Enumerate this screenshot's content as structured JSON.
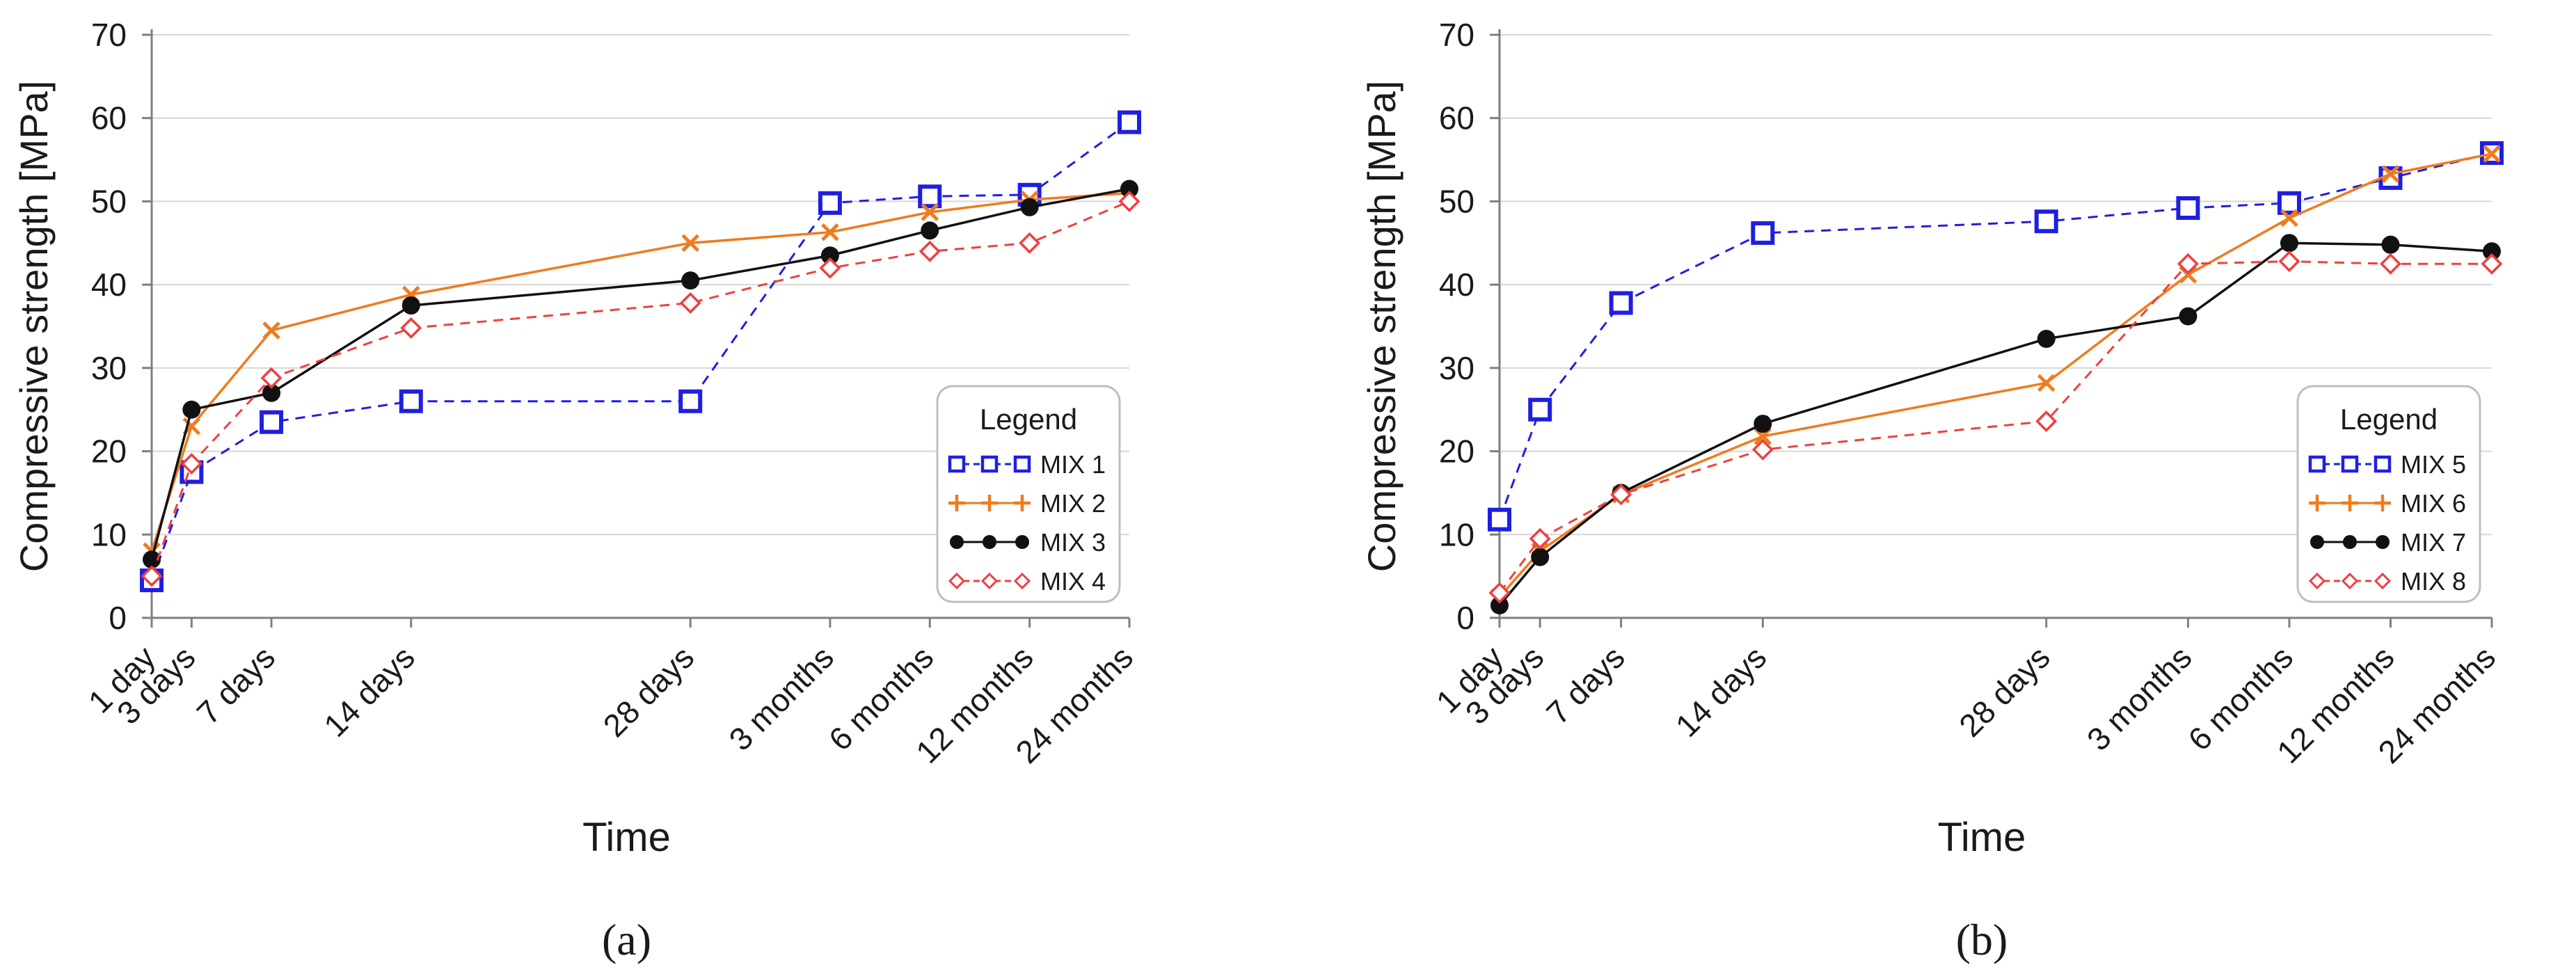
{
  "chart_data": [
    {
      "type": "line",
      "panel_label": "(a)",
      "xlabel": "Time",
      "ylabel": "Compressive strength [MPa]",
      "ylim": [
        0,
        70
      ],
      "yticks": [
        0,
        10,
        20,
        30,
        40,
        50,
        60,
        70
      ],
      "x": [
        1,
        3,
        7,
        14,
        28,
        35,
        40,
        45,
        50
      ],
      "categories": [
        "1 day",
        "3 days",
        "7 days",
        "14 days",
        "28 days",
        "3 months",
        "6 months",
        "12 months",
        "24 months"
      ],
      "grid": "horizontal",
      "legend_title": "Legend",
      "legend_position": "lower-right",
      "series": [
        {
          "name": "MIX 1",
          "color": "#1f1fe0",
          "marker": "square",
          "dash": "dashed",
          "values": [
            4.5,
            17.5,
            23.5,
            26,
            26,
            49.8,
            50.6,
            50.8,
            59.5
          ]
        },
        {
          "name": "MIX 2",
          "color": "#f07b1e",
          "marker": "x",
          "dash": "solid",
          "values": [
            8,
            23,
            34.5,
            38.8,
            45,
            46.3,
            48.7,
            50.2,
            51
          ]
        },
        {
          "name": "MIX 3",
          "color": "#111111",
          "marker": "circle",
          "dash": "solid",
          "values": [
            7,
            25,
            27,
            37.5,
            40.5,
            43.5,
            46.5,
            49.3,
            51.5
          ]
        },
        {
          "name": "MIX 4",
          "color": "#ee4040",
          "marker": "diamond",
          "dash": "dashed",
          "values": [
            5,
            18.5,
            28.8,
            34.8,
            37.8,
            42,
            44,
            45,
            50
          ]
        }
      ]
    },
    {
      "type": "line",
      "panel_label": "(b)",
      "xlabel": "Time",
      "ylabel": "Compressive strength [MPa]",
      "ylim": [
        0,
        70
      ],
      "yticks": [
        0,
        10,
        20,
        30,
        40,
        50,
        60,
        70
      ],
      "x": [
        1,
        3,
        7,
        14,
        28,
        35,
        40,
        45,
        50
      ],
      "categories": [
        "1 day",
        "3 days",
        "7 days",
        "14 days",
        "28 days",
        "3 months",
        "6 months",
        "12 months",
        "24 months"
      ],
      "grid": "horizontal",
      "legend_title": "Legend",
      "legend_position": "lower-right",
      "series": [
        {
          "name": "MIX 5",
          "color": "#1f1fe0",
          "marker": "square",
          "dash": "dashed",
          "values": [
            11.8,
            25,
            37.8,
            46.2,
            47.6,
            49.2,
            49.8,
            52.8,
            55.8
          ]
        },
        {
          "name": "MIX 6",
          "color": "#f07b1e",
          "marker": "x",
          "dash": "solid",
          "values": [
            2.5,
            8,
            14.8,
            21.8,
            28.2,
            41.2,
            48,
            53.3,
            55.7
          ]
        },
        {
          "name": "MIX 7",
          "color": "#111111",
          "marker": "circle",
          "dash": "solid",
          "values": [
            1.5,
            7.3,
            15,
            23.3,
            33.5,
            36.2,
            45,
            44.8,
            44
          ]
        },
        {
          "name": "MIX 8",
          "color": "#ee4040",
          "marker": "diamond",
          "dash": "dashed",
          "values": [
            3,
            9.5,
            14.8,
            20.2,
            23.6,
            42.5,
            42.8,
            42.5,
            42.5
          ]
        }
      ]
    }
  ]
}
